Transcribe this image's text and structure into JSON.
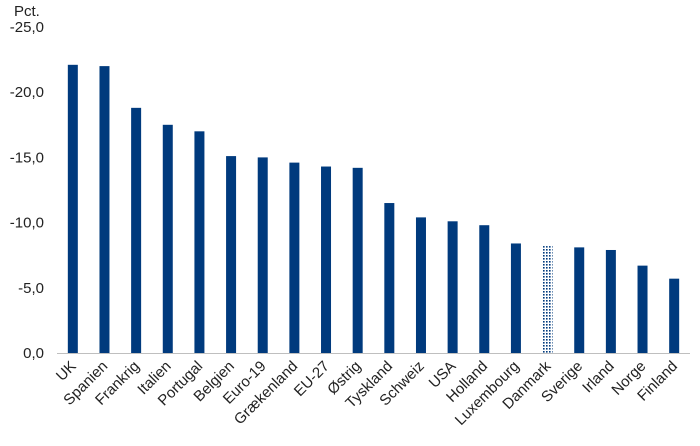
{
  "chart_data": {
    "type": "bar",
    "unit_label": "Pct.",
    "categories": [
      "UK",
      "Spanien",
      "Frankrig",
      "Italien",
      "Portugal",
      "Belgien",
      "Euro-19",
      "Grækenland",
      "EU-27",
      "Østrig",
      "Tyskland",
      "Schweiz",
      "USA",
      "Holland",
      "Luxembourg",
      "Danmark",
      "Sverige",
      "Irland",
      "Norge",
      "Finland"
    ],
    "values": [
      -22.1,
      -22.0,
      -18.8,
      -17.5,
      -17.0,
      -15.1,
      -15.0,
      -14.6,
      -14.3,
      -14.2,
      -11.5,
      -10.4,
      -10.1,
      -9.8,
      -8.4,
      -8.2,
      -8.1,
      -7.9,
      -6.7,
      -5.7
    ],
    "highlighted_category": "Danmark",
    "yticks": [
      0,
      -5,
      -10,
      -15,
      -20,
      -25
    ],
    "ytick_labels": [
      "0,0",
      "-5,0",
      "-10,0",
      "-15,0",
      "-20,0",
      "-25,0"
    ],
    "ylim": [
      0,
      -25
    ],
    "y_axis_reversed": true,
    "grid": false,
    "legend": "none",
    "colors": {
      "bar": "#003a7d",
      "highlight_pattern_fg": "#003a7d",
      "highlight_pattern_bg": "#ffffff",
      "axis": "#bfbfbf",
      "text": "#222222"
    }
  }
}
